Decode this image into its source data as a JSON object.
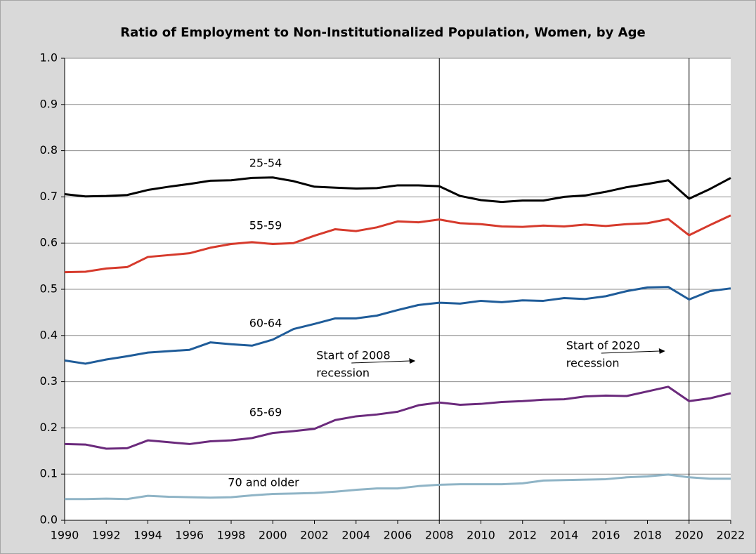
{
  "chart_data": {
    "type": "line",
    "title": "Ratio of Employment to Non-Institutionalized Population, Women, by Age",
    "x": [
      1990,
      1991,
      1992,
      1993,
      1994,
      1995,
      1996,
      1997,
      1998,
      1999,
      2000,
      2001,
      2002,
      2003,
      2004,
      2005,
      2006,
      2007,
      2008,
      2009,
      2010,
      2011,
      2012,
      2013,
      2014,
      2015,
      2016,
      2017,
      2018,
      2019,
      2020,
      2021,
      2022
    ],
    "series": [
      {
        "name": "25-54",
        "color": "#000000",
        "values": [
          0.706,
          0.701,
          0.702,
          0.704,
          0.715,
          0.722,
          0.728,
          0.735,
          0.736,
          0.741,
          0.742,
          0.734,
          0.722,
          0.72,
          0.718,
          0.719,
          0.725,
          0.725,
          0.723,
          0.702,
          0.693,
          0.689,
          0.692,
          0.692,
          0.7,
          0.703,
          0.711,
          0.721,
          0.728,
          0.736,
          0.696,
          0.717,
          0.741
        ]
      },
      {
        "name": "55-59",
        "color": "#d63a2c",
        "values": [
          0.537,
          0.538,
          0.545,
          0.548,
          0.57,
          0.574,
          0.578,
          0.59,
          0.598,
          0.602,
          0.598,
          0.6,
          0.616,
          0.63,
          0.626,
          0.634,
          0.647,
          0.645,
          0.651,
          0.643,
          0.641,
          0.636,
          0.635,
          0.638,
          0.636,
          0.64,
          0.637,
          0.641,
          0.643,
          0.652,
          0.617,
          0.639,
          0.66
        ]
      },
      {
        "name": "60-64",
        "color": "#1f5c99",
        "values": [
          0.346,
          0.339,
          0.348,
          0.355,
          0.363,
          0.366,
          0.369,
          0.385,
          0.381,
          0.378,
          0.391,
          0.414,
          0.425,
          0.437,
          0.437,
          0.443,
          0.455,
          0.466,
          0.471,
          0.469,
          0.475,
          0.472,
          0.476,
          0.475,
          0.481,
          0.479,
          0.485,
          0.496,
          0.504,
          0.505,
          0.478,
          0.496,
          0.502
        ]
      },
      {
        "name": "65-69",
        "color": "#6b2a7c",
        "values": [
          0.165,
          0.164,
          0.155,
          0.156,
          0.173,
          0.169,
          0.165,
          0.171,
          0.173,
          0.178,
          0.189,
          0.193,
          0.198,
          0.217,
          0.225,
          0.229,
          0.235,
          0.249,
          0.255,
          0.25,
          0.252,
          0.256,
          0.258,
          0.261,
          0.262,
          0.268,
          0.27,
          0.269,
          0.279,
          0.289,
          0.258,
          0.264,
          0.275
        ]
      },
      {
        "name": "70 and older",
        "color": "#8fb4c6",
        "values": [
          0.046,
          0.046,
          0.047,
          0.046,
          0.053,
          0.051,
          0.05,
          0.049,
          0.05,
          0.054,
          0.057,
          0.058,
          0.059,
          0.062,
          0.066,
          0.069,
          0.069,
          0.074,
          0.077,
          0.078,
          0.078,
          0.078,
          0.08,
          0.086,
          0.087,
          0.088,
          0.089,
          0.093,
          0.095,
          0.099,
          0.093,
          0.09,
          0.09
        ]
      }
    ],
    "xlim": [
      1990,
      2022
    ],
    "xticks": [
      1990,
      1992,
      1994,
      1996,
      1998,
      2000,
      2002,
      2004,
      2006,
      2008,
      2010,
      2012,
      2014,
      2016,
      2018,
      2020,
      2022
    ],
    "ylim": [
      0,
      1
    ],
    "yticks": [
      {
        "value": 0,
        "label": "0.0"
      },
      0.1,
      0.2,
      0.3,
      0.4,
      0.5,
      0.6,
      0.7,
      0.8,
      0.9,
      {
        "value": 1,
        "label": "1.0"
      }
    ],
    "grid": true,
    "annotations": [
      {
        "x": 2008,
        "text": [
          "Start of 2008",
          "recession"
        ]
      },
      {
        "x": 2020,
        "text": [
          "Start of 2020",
          "recession"
        ]
      }
    ]
  }
}
